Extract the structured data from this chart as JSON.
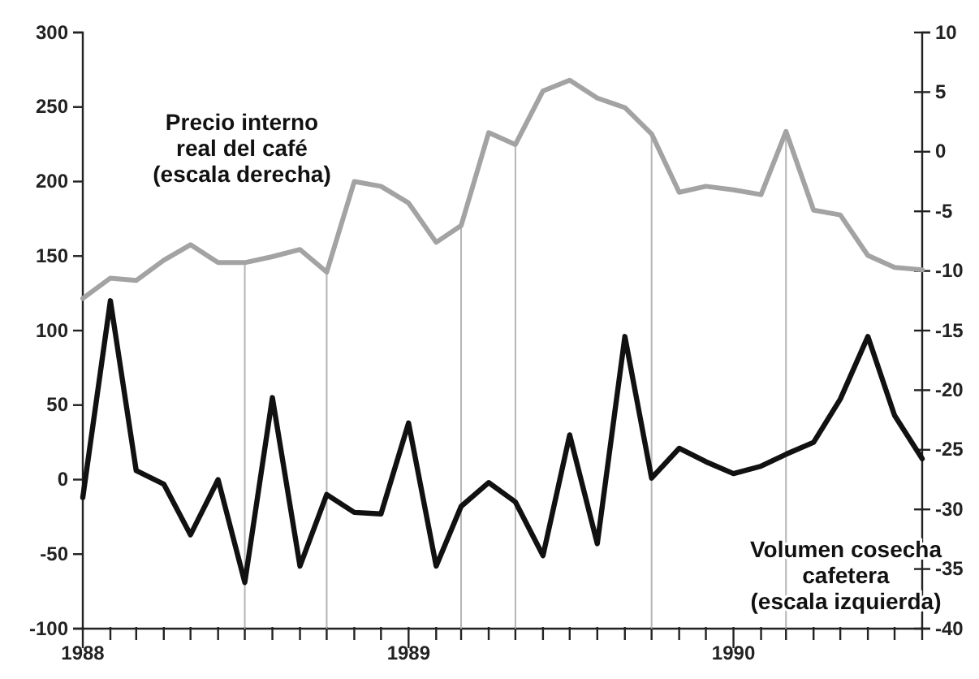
{
  "chart_data": {
    "type": "line",
    "x": [
      "1988-01",
      "1988-02",
      "1988-03",
      "1988-04",
      "1988-05",
      "1988-06",
      "1988-07",
      "1988-08",
      "1988-09",
      "1988-10",
      "1988-11",
      "1988-12",
      "1989-01",
      "1989-02",
      "1989-03",
      "1989-04",
      "1989-05",
      "1989-06",
      "1989-07",
      "1989-08",
      "1989-09",
      "1989-10",
      "1989-11",
      "1989-12",
      "1990-01",
      "1990-02",
      "1990-03",
      "1990-04",
      "1990-05",
      "1990-06",
      "1990-07",
      "1990-08"
    ],
    "series": [
      {
        "name": "Precio interno real del café (escala derecha)",
        "color": "#a3a3a3",
        "axis": "y2",
        "values": [
          -12.3,
          -10.6,
          -10.8,
          -9.1,
          -7.8,
          -9.3,
          -9.3,
          -8.8,
          -8.2,
          -10.1,
          -2.5,
          -2.9,
          -4.3,
          -7.6,
          -6.2,
          1.6,
          0.6,
          5.1,
          6.0,
          4.5,
          3.7,
          1.5,
          -3.4,
          -2.9,
          -3.2,
          -3.6,
          1.7,
          -4.9,
          -5.3,
          -8.7,
          -9.7,
          -9.9
        ]
      },
      {
        "name": "Volumen cosecha cafetera (escala izquierda)",
        "color": "#111111",
        "values": [
          -12,
          120,
          6,
          -3,
          -37,
          0,
          -69,
          55,
          -58,
          -10,
          -22,
          -23,
          38,
          -58,
          -18,
          -2,
          -15,
          -51,
          30,
          -43,
          96,
          1,
          21,
          12,
          4,
          9,
          17,
          25,
          54,
          96,
          43,
          14
        ]
      }
    ],
    "xlim": [
      "1988-01",
      "1990-08"
    ],
    "xticks": [
      {
        "value": "1988-01",
        "label": "1988"
      },
      {
        "value": "1988-02",
        "label": null
      },
      {
        "value": "1988-03",
        "label": null
      },
      {
        "value": "1988-04",
        "label": null
      },
      {
        "value": "1988-05",
        "label": null
      },
      {
        "value": "1988-06",
        "label": null
      },
      {
        "value": "1988-07",
        "label": null
      },
      {
        "value": "1988-08",
        "label": null
      },
      {
        "value": "1988-09",
        "label": null
      },
      {
        "value": "1988-10",
        "label": null
      },
      {
        "value": "1988-11",
        "label": null
      },
      {
        "value": "1988-12",
        "label": null
      },
      {
        "value": "1989-01",
        "label": "1989"
      },
      {
        "value": "1989-02",
        "label": null
      },
      {
        "value": "1989-03",
        "label": null
      },
      {
        "value": "1989-04",
        "label": null
      },
      {
        "value": "1989-05",
        "label": null
      },
      {
        "value": "1989-06",
        "label": null
      },
      {
        "value": "1989-07",
        "label": null
      },
      {
        "value": "1989-08",
        "label": null
      },
      {
        "value": "1989-09",
        "label": null
      },
      {
        "value": "1989-10",
        "label": null
      },
      {
        "value": "1989-11",
        "label": null
      },
      {
        "value": "1989-12",
        "label": null
      },
      {
        "value": "1990-01",
        "label": "1990"
      },
      {
        "value": "1990-02",
        "label": null
      },
      {
        "value": "1990-03",
        "label": null
      },
      {
        "value": "1990-04",
        "label": null
      },
      {
        "value": "1990-05",
        "label": null
      },
      {
        "value": "1990-06",
        "label": null
      },
      {
        "value": "1990-07",
        "label": null
      },
      {
        "value": "1990-08",
        "label": null
      }
    ],
    "ylim": [
      -100,
      300
    ],
    "yticks": [
      -100,
      -50,
      0,
      50,
      100,
      150,
      200,
      250,
      300
    ],
    "y2lim": [
      -40,
      10
    ],
    "y2ticks": [
      -40,
      -35,
      -30,
      -25,
      -20,
      -15,
      -10,
      -5,
      0,
      5,
      10
    ],
    "ref_lines": [
      {
        "axis": "x",
        "value": "1988-07",
        "color": "#b5b5b5"
      },
      {
        "axis": "x",
        "value": "1988-10",
        "color": "#b5b5b5"
      },
      {
        "axis": "x",
        "value": "1989-03",
        "color": "#b5b5b5"
      },
      {
        "axis": "x",
        "value": "1989-05",
        "color": "#b5b5b5"
      },
      {
        "axis": "x",
        "value": "1989-10",
        "color": "#b5b5b5"
      },
      {
        "axis": "x",
        "value": "1990-03",
        "color": "#b5b5b5"
      }
    ],
    "grid": false,
    "marker": "none",
    "line_style": "solid"
  }
}
